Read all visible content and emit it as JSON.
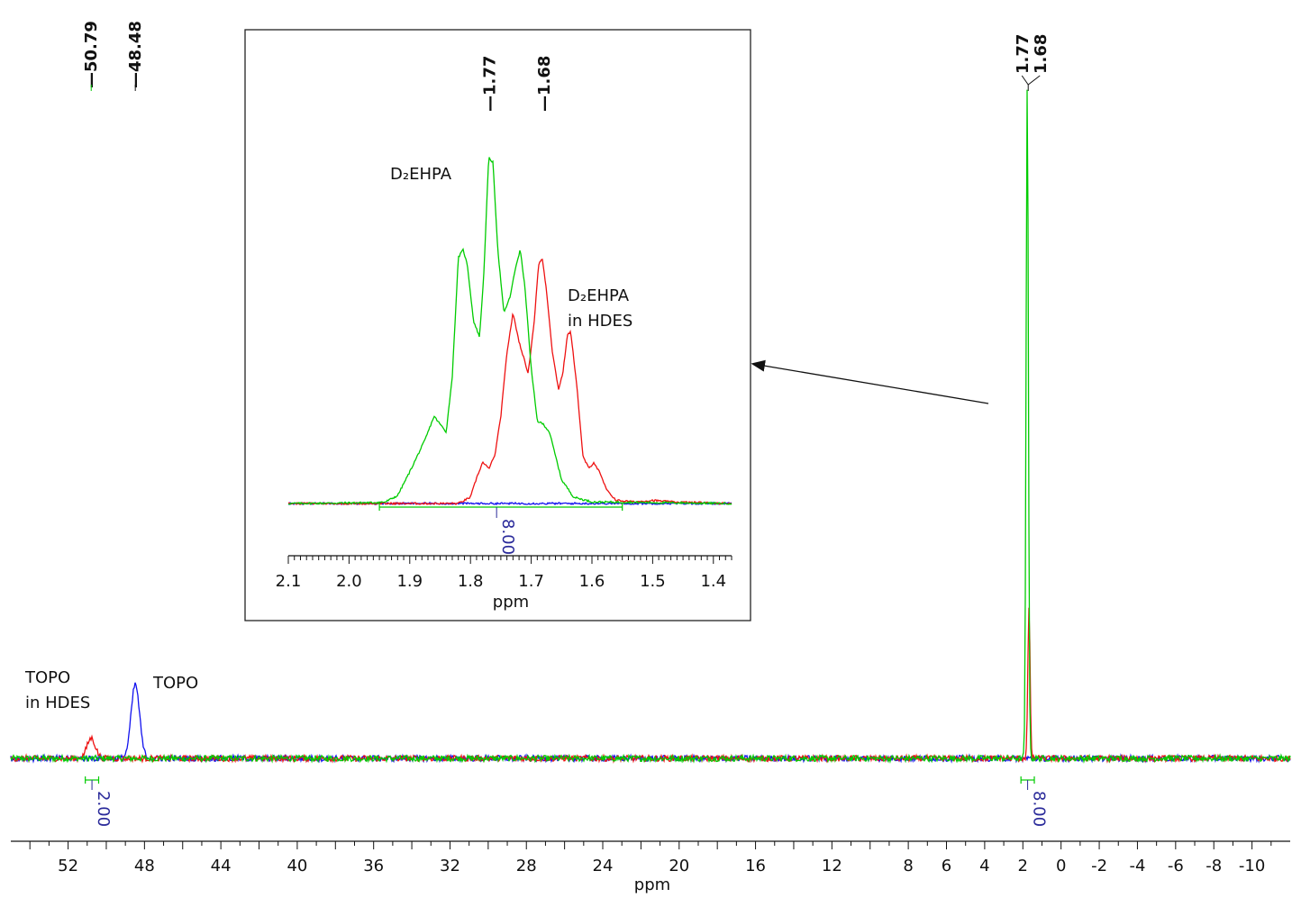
{
  "chart_data": [
    {
      "type": "line",
      "xlabel": "ppm",
      "xlim": [
        55,
        -12
      ],
      "x_reversed": true,
      "x_ticks": [
        52,
        48,
        44,
        40,
        36,
        32,
        28,
        24,
        20,
        16,
        12,
        8,
        6,
        4,
        2,
        0,
        -2,
        -4,
        -6,
        -8,
        -10
      ],
      "grid": false,
      "legend": "none",
      "series_colors": {
        "green": "#00cc00",
        "red": "#ee1111",
        "blue": "#1111ee"
      },
      "series": [
        {
          "color": "green",
          "peaks": [
            {
              "x": 1.77,
              "height": 1.0
            }
          ]
        },
        {
          "color": "red",
          "peaks": [
            {
              "x": 1.68,
              "height": 0.22
            },
            {
              "x": 50.79,
              "height": 0.03
            }
          ]
        },
        {
          "color": "blue",
          "peaks": [
            {
              "x": 48.48,
              "height": 0.11
            }
          ]
        }
      ],
      "peak_labels": [
        "50.79",
        "48.48",
        "1.77",
        "1.68"
      ],
      "integrals": [
        {
          "from": 51.1,
          "to": 50.4,
          "value": "2.00"
        },
        {
          "from": 2.1,
          "to": 1.4,
          "value": "8.00"
        }
      ],
      "annotations": [
        {
          "lines": [
            "TOPO",
            "in HDES"
          ]
        },
        {
          "lines": [
            "TOPO"
          ]
        }
      ]
    },
    {
      "type": "line",
      "inset": true,
      "xlabel": "ppm",
      "xlim": [
        2.1,
        1.37
      ],
      "x_reversed": true,
      "x_ticks": [
        2.1,
        2.0,
        1.9,
        1.8,
        1.7,
        1.6,
        1.5,
        1.4
      ],
      "grid": false,
      "peak_labels": [
        "1.77",
        "1.68"
      ],
      "integrals": [
        {
          "from": 1.95,
          "to": 1.55,
          "value": "8.00"
        }
      ],
      "series": [
        {
          "color": "green",
          "points": [
            [
              2.1,
              0
            ],
            [
              1.96,
              0.005
            ],
            [
              1.94,
              0.01
            ],
            [
              1.92,
              0.05
            ],
            [
              1.9,
              0.2
            ],
            [
              1.875,
              0.4
            ],
            [
              1.86,
              0.55
            ],
            [
              1.85,
              0.5
            ],
            [
              1.84,
              0.45
            ],
            [
              1.83,
              0.8
            ],
            [
              1.82,
              1.55
            ],
            [
              1.812,
              1.6
            ],
            [
              1.805,
              1.5
            ],
            [
              1.795,
              1.15
            ],
            [
              1.785,
              1.05
            ],
            [
              1.778,
              1.45
            ],
            [
              1.77,
              2.18
            ],
            [
              1.763,
              2.15
            ],
            [
              1.755,
              1.6
            ],
            [
              1.745,
              1.2
            ],
            [
              1.735,
              1.3
            ],
            [
              1.725,
              1.5
            ],
            [
              1.718,
              1.6
            ],
            [
              1.71,
              1.35
            ],
            [
              1.7,
              0.85
            ],
            [
              1.69,
              0.52
            ],
            [
              1.68,
              0.5
            ],
            [
              1.67,
              0.45
            ],
            [
              1.66,
              0.3
            ],
            [
              1.65,
              0.15
            ],
            [
              1.63,
              0.04
            ],
            [
              1.6,
              0.01
            ],
            [
              1.37,
              0
            ]
          ]
        },
        {
          "color": "red",
          "points": [
            [
              2.1,
              0
            ],
            [
              1.82,
              0
            ],
            [
              1.8,
              0.04
            ],
            [
              1.79,
              0.16
            ],
            [
              1.78,
              0.26
            ],
            [
              1.77,
              0.22
            ],
            [
              1.76,
              0.3
            ],
            [
              1.75,
              0.55
            ],
            [
              1.74,
              0.95
            ],
            [
              1.73,
              1.2
            ],
            [
              1.72,
              1.02
            ],
            [
              1.705,
              0.82
            ],
            [
              1.695,
              1.15
            ],
            [
              1.688,
              1.5
            ],
            [
              1.682,
              1.55
            ],
            [
              1.675,
              1.35
            ],
            [
              1.665,
              0.95
            ],
            [
              1.655,
              0.72
            ],
            [
              1.648,
              0.82
            ],
            [
              1.64,
              1.07
            ],
            [
              1.635,
              1.08
            ],
            [
              1.625,
              0.75
            ],
            [
              1.615,
              0.3
            ],
            [
              1.605,
              0.22
            ],
            [
              1.597,
              0.26
            ],
            [
              1.588,
              0.2
            ],
            [
              1.575,
              0.08
            ],
            [
              1.56,
              0.02
            ],
            [
              1.53,
              0.01
            ],
            [
              1.5,
              0.02
            ],
            [
              1.47,
              0.01
            ],
            [
              1.37,
              0
            ]
          ]
        },
        {
          "color": "blue",
          "points": [
            [
              2.1,
              0
            ],
            [
              1.37,
              0
            ]
          ]
        }
      ],
      "annotations": [
        {
          "lines": [
            "D₂EHPA"
          ]
        },
        {
          "lines": [
            "D₂EHPA",
            "in HDES"
          ]
        }
      ]
    }
  ]
}
